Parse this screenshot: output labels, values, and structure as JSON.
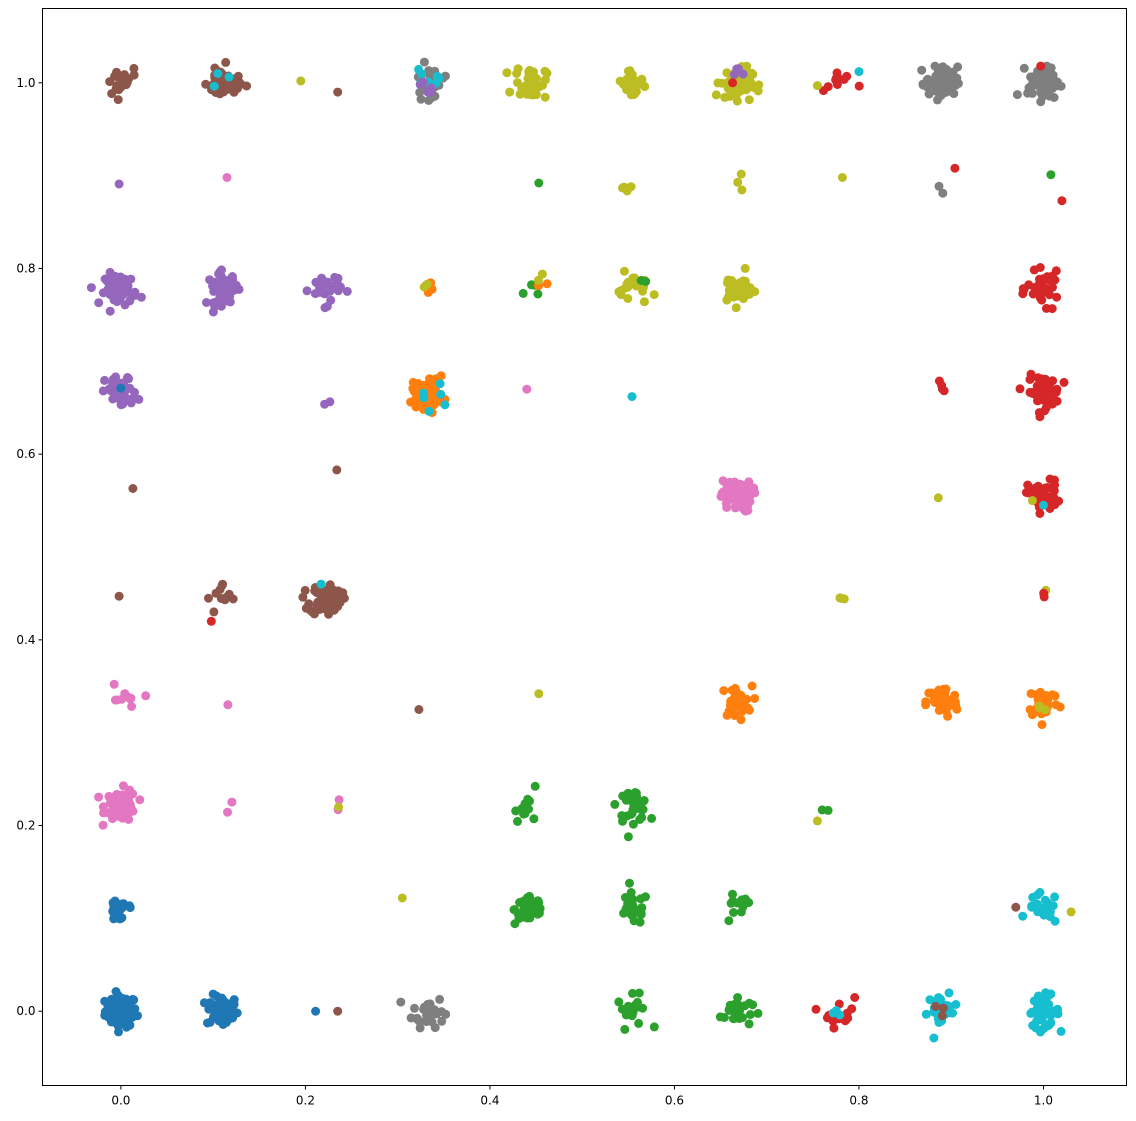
{
  "chart_data": {
    "type": "scatter",
    "title": "",
    "xlabel": "",
    "ylabel": "",
    "xlim": [
      -0.085,
      1.09
    ],
    "ylim": [
      -0.08,
      1.08
    ],
    "grid": false,
    "legend": "none",
    "xticks": [
      {
        "value": 0.0,
        "label": "0.0"
      },
      {
        "value": 0.2,
        "label": "0.2"
      },
      {
        "value": 0.4,
        "label": "0.4"
      },
      {
        "value": 0.6,
        "label": "0.6"
      },
      {
        "value": 0.8,
        "label": "0.8"
      },
      {
        "value": 1.0,
        "label": "1.0"
      }
    ],
    "yticks": [
      {
        "value": 0.0,
        "label": "0.0"
      },
      {
        "value": 0.2,
        "label": "0.2"
      },
      {
        "value": 0.4,
        "label": "0.4"
      },
      {
        "value": 0.6,
        "label": "0.6"
      },
      {
        "value": 0.8,
        "label": "0.8"
      },
      {
        "value": 1.0,
        "label": "1.0"
      }
    ],
    "palette": [
      "#1f77b4",
      "#ff7f0e",
      "#2ca02c",
      "#d62728",
      "#9467bd",
      "#8c564b",
      "#e377c2",
      "#7f7f7f",
      "#bcbd22",
      "#17becf"
    ],
    "clusters": [
      {
        "x": 0.0,
        "y": 0.0,
        "n": 80,
        "c": 0
      },
      {
        "x": 0.11,
        "y": 0.0,
        "n": 60,
        "c": 0
      },
      {
        "x": 0.0,
        "y": 0.11,
        "n": 18,
        "c": 0
      },
      {
        "x": 0.211,
        "y": 0.0,
        "n": 1,
        "c": 0
      },
      {
        "x": 0.235,
        "y": 0.0,
        "n": 1,
        "c": 5
      },
      {
        "x": 0.333,
        "y": 0.0,
        "n": 30,
        "c": 7
      },
      {
        "x": 0.555,
        "y": 0.0,
        "n": 18,
        "c": 2
      },
      {
        "x": 0.667,
        "y": 0.0,
        "n": 30,
        "c": 2
      },
      {
        "x": 0.778,
        "y": 0.0,
        "n": 14,
        "c": 3
      },
      {
        "x": 0.778,
        "y": 0.0,
        "n": 3,
        "c": 9
      },
      {
        "x": 0.89,
        "y": 0.0,
        "n": 25,
        "c": 9
      },
      {
        "x": 0.89,
        "y": 0.0,
        "n": 3,
        "c": 5
      },
      {
        "x": 1.0,
        "y": 0.0,
        "n": 45,
        "c": 9
      },
      {
        "x": 0.444,
        "y": 0.11,
        "n": 40,
        "c": 2
      },
      {
        "x": 0.555,
        "y": 0.11,
        "n": 25,
        "c": 2
      },
      {
        "x": 0.667,
        "y": 0.11,
        "n": 12,
        "c": 2
      },
      {
        "x": 1.0,
        "y": 0.11,
        "n": 20,
        "c": 9
      },
      {
        "x": 0.97,
        "y": 0.112,
        "n": 1,
        "c": 5
      },
      {
        "x": 1.03,
        "y": 0.107,
        "n": 1,
        "c": 8
      },
      {
        "x": 0.305,
        "y": 0.122,
        "n": 1,
        "c": 8
      },
      {
        "x": 0.0,
        "y": 0.222,
        "n": 60,
        "c": 6
      },
      {
        "x": 0.115,
        "y": 0.22,
        "n": 2,
        "c": 6
      },
      {
        "x": 0.236,
        "y": 0.222,
        "n": 2,
        "c": 6
      },
      {
        "x": 0.236,
        "y": 0.22,
        "n": 1,
        "c": 8
      },
      {
        "x": 0.444,
        "y": 0.222,
        "n": 12,
        "c": 2
      },
      {
        "x": 0.555,
        "y": 0.222,
        "n": 35,
        "c": 2
      },
      {
        "x": 0.764,
        "y": 0.212,
        "n": 2,
        "c": 2
      },
      {
        "x": 0.755,
        "y": 0.205,
        "n": 1,
        "c": 8
      },
      {
        "x": 0.0,
        "y": 0.333,
        "n": 10,
        "c": 6
      },
      {
        "x": 0.116,
        "y": 0.33,
        "n": 1,
        "c": 6
      },
      {
        "x": 0.323,
        "y": 0.325,
        "n": 1,
        "c": 5
      },
      {
        "x": 0.453,
        "y": 0.342,
        "n": 1,
        "c": 8
      },
      {
        "x": 0.667,
        "y": 0.333,
        "n": 30,
        "c": 1
      },
      {
        "x": 0.89,
        "y": 0.333,
        "n": 55,
        "c": 1
      },
      {
        "x": 1.0,
        "y": 0.333,
        "n": 35,
        "c": 1
      },
      {
        "x": 1.0,
        "y": 0.328,
        "n": 3,
        "c": 8
      },
      {
        "x": -0.002,
        "y": 0.447,
        "n": 1,
        "c": 5
      },
      {
        "x": 0.111,
        "y": 0.444,
        "n": 12,
        "c": 5
      },
      {
        "x": 0.098,
        "y": 0.42,
        "n": 1,
        "c": 3
      },
      {
        "x": 0.222,
        "y": 0.444,
        "n": 70,
        "c": 5
      },
      {
        "x": 0.217,
        "y": 0.46,
        "n": 1,
        "c": 9
      },
      {
        "x": 0.78,
        "y": 0.448,
        "n": 3,
        "c": 8
      },
      {
        "x": 1.0,
        "y": 0.444,
        "n": 2,
        "c": 8
      },
      {
        "x": 1.0,
        "y": 0.45,
        "n": 2,
        "c": 3
      },
      {
        "x": 0.013,
        "y": 0.563,
        "n": 1,
        "c": 5
      },
      {
        "x": 0.234,
        "y": 0.583,
        "n": 1,
        "c": 5
      },
      {
        "x": 0.667,
        "y": 0.555,
        "n": 60,
        "c": 6
      },
      {
        "x": 0.886,
        "y": 0.553,
        "n": 1,
        "c": 8
      },
      {
        "x": 1.0,
        "y": 0.555,
        "n": 45,
        "c": 3
      },
      {
        "x": 0.988,
        "y": 0.55,
        "n": 1,
        "c": 8
      },
      {
        "x": 1.0,
        "y": 0.545,
        "n": 1,
        "c": 9
      },
      {
        "x": 0.0,
        "y": 0.667,
        "n": 50,
        "c": 4
      },
      {
        "x": 0.0,
        "y": 0.671,
        "n": 1,
        "c": 0
      },
      {
        "x": 0.222,
        "y": 0.654,
        "n": 2,
        "c": 4
      },
      {
        "x": 0.333,
        "y": 0.667,
        "n": 50,
        "c": 1
      },
      {
        "x": 0.333,
        "y": 0.662,
        "n": 6,
        "c": 9
      },
      {
        "x": 0.44,
        "y": 0.67,
        "n": 1,
        "c": 6
      },
      {
        "x": 0.554,
        "y": 0.662,
        "n": 1,
        "c": 9
      },
      {
        "x": 0.89,
        "y": 0.67,
        "n": 4,
        "c": 3
      },
      {
        "x": 1.0,
        "y": 0.667,
        "n": 60,
        "c": 3
      },
      {
        "x": 0.0,
        "y": 0.778,
        "n": 60,
        "c": 4
      },
      {
        "x": 0.111,
        "y": 0.778,
        "n": 50,
        "c": 4
      },
      {
        "x": 0.222,
        "y": 0.778,
        "n": 30,
        "c": 4
      },
      {
        "x": 0.333,
        "y": 0.78,
        "n": 4,
        "c": 1
      },
      {
        "x": 0.333,
        "y": 0.784,
        "n": 2,
        "c": 8
      },
      {
        "x": 0.444,
        "y": 0.778,
        "n": 4,
        "c": 2
      },
      {
        "x": 0.454,
        "y": 0.782,
        "n": 3,
        "c": 1
      },
      {
        "x": 0.454,
        "y": 0.79,
        "n": 2,
        "c": 8
      },
      {
        "x": 0.555,
        "y": 0.778,
        "n": 20,
        "c": 8
      },
      {
        "x": 0.568,
        "y": 0.783,
        "n": 2,
        "c": 2
      },
      {
        "x": 0.667,
        "y": 0.778,
        "n": 35,
        "c": 8
      },
      {
        "x": 1.0,
        "y": 0.778,
        "n": 40,
        "c": 3
      },
      {
        "x": -0.002,
        "y": 0.891,
        "n": 1,
        "c": 4
      },
      {
        "x": 0.115,
        "y": 0.898,
        "n": 1,
        "c": 6
      },
      {
        "x": 0.453,
        "y": 0.892,
        "n": 1,
        "c": 2
      },
      {
        "x": 0.55,
        "y": 0.885,
        "n": 4,
        "c": 8
      },
      {
        "x": 0.669,
        "y": 0.89,
        "n": 3,
        "c": 8
      },
      {
        "x": 0.782,
        "y": 0.898,
        "n": 1,
        "c": 8
      },
      {
        "x": 0.887,
        "y": 0.886,
        "n": 2,
        "c": 7
      },
      {
        "x": 0.904,
        "y": 0.908,
        "n": 1,
        "c": 3
      },
      {
        "x": 1.008,
        "y": 0.901,
        "n": 1,
        "c": 2
      },
      {
        "x": 1.02,
        "y": 0.873,
        "n": 1,
        "c": 3
      },
      {
        "x": 0.0,
        "y": 1.0,
        "n": 25,
        "c": 5
      },
      {
        "x": 0.111,
        "y": 1.0,
        "n": 50,
        "c": 5
      },
      {
        "x": 0.111,
        "y": 1.0,
        "n": 3,
        "c": 9
      },
      {
        "x": 0.195,
        "y": 1.002,
        "n": 1,
        "c": 8
      },
      {
        "x": 0.235,
        "y": 0.99,
        "n": 1,
        "c": 5
      },
      {
        "x": 0.333,
        "y": 1.0,
        "n": 20,
        "c": 7
      },
      {
        "x": 0.333,
        "y": 1.0,
        "n": 8,
        "c": 9
      },
      {
        "x": 0.336,
        "y": 1.0,
        "n": 6,
        "c": 4
      },
      {
        "x": 0.444,
        "y": 1.0,
        "n": 40,
        "c": 8
      },
      {
        "x": 0.555,
        "y": 1.0,
        "n": 25,
        "c": 8
      },
      {
        "x": 0.667,
        "y": 1.0,
        "n": 60,
        "c": 8
      },
      {
        "x": 0.667,
        "y": 1.008,
        "n": 4,
        "c": 4
      },
      {
        "x": 0.663,
        "y": 1.0,
        "n": 1,
        "c": 3
      },
      {
        "x": 0.778,
        "y": 1.0,
        "n": 10,
        "c": 3
      },
      {
        "x": 0.755,
        "y": 0.997,
        "n": 1,
        "c": 8
      },
      {
        "x": 0.8,
        "y": 1.012,
        "n": 1,
        "c": 9
      },
      {
        "x": 0.89,
        "y": 1.0,
        "n": 70,
        "c": 7
      },
      {
        "x": 1.0,
        "y": 1.0,
        "n": 70,
        "c": 7
      },
      {
        "x": 0.997,
        "y": 1.018,
        "n": 1,
        "c": 3
      }
    ]
  }
}
